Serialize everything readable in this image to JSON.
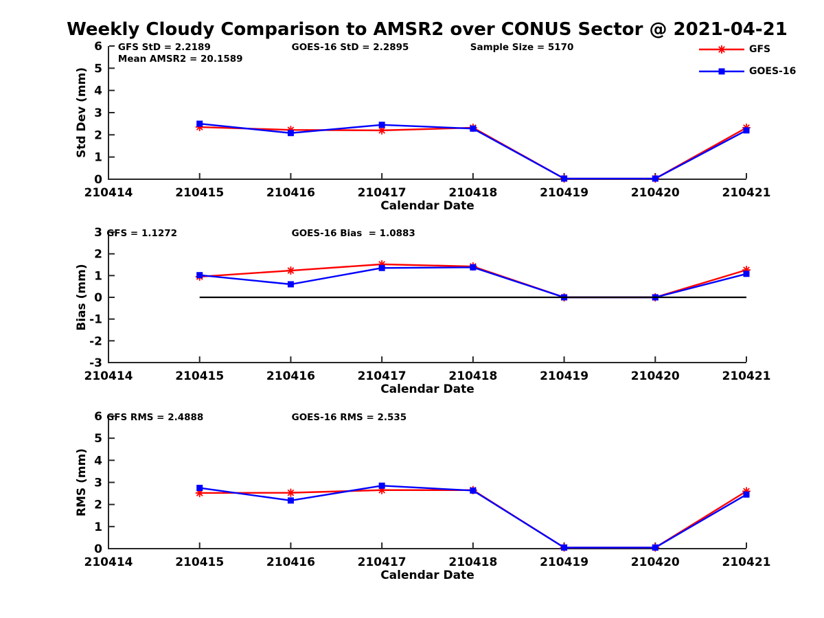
{
  "title": "Weekly Cloudy Comparison to AMSR2 over CONUS Sector @ 2021-04-21",
  "colors": {
    "gfs": "#ff0000",
    "goes16": "#0000ff",
    "axis": "#262626",
    "zero_line": "#000000",
    "text": "#000000"
  },
  "legend": [
    {
      "label": "GFS",
      "color": "#ff0000",
      "marker": "asterisk"
    },
    {
      "label": "GOES-16",
      "color": "#0000ff",
      "marker": "square"
    }
  ],
  "chart_data": [
    {
      "type": "line",
      "name": "std-dev",
      "xlabel": "Calendar Date",
      "ylabel": "Std Dev (mm)",
      "ylim": [
        0,
        6
      ],
      "yticks": [
        0,
        1,
        2,
        3,
        4,
        5,
        6
      ],
      "categories": [
        "210414",
        "210415",
        "210416",
        "210417",
        "210418",
        "210419",
        "210420",
        "210421"
      ],
      "x": [
        "210415",
        "210416",
        "210417",
        "210418",
        "210419",
        "210420",
        "210421"
      ],
      "zero_line": false,
      "annotations": [
        {
          "text": "GFS StD = 2.2189",
          "xf": 0.015,
          "row": 0
        },
        {
          "text": "Mean AMSR2 = 20.1589",
          "xf": 0.015,
          "row": 1
        },
        {
          "text": "GOES-16 StD = 2.2895",
          "xf": 0.287,
          "row": 0
        },
        {
          "text": "Sample Size = 5170",
          "xf": 0.567,
          "row": 0
        }
      ],
      "series": [
        {
          "name": "GFS",
          "color": "#ff0000",
          "marker": "asterisk",
          "values": [
            2.35,
            2.22,
            2.2,
            2.32,
            0.03,
            0.03,
            2.32
          ]
        },
        {
          "name": "GOES-16",
          "color": "#0000ff",
          "marker": "square",
          "values": [
            2.5,
            2.08,
            2.45,
            2.28,
            0.03,
            0.03,
            2.2
          ]
        }
      ]
    },
    {
      "type": "line",
      "name": "bias",
      "xlabel": "Calendar Date",
      "ylabel": "Bias (mm)",
      "ylim": [
        -3,
        3
      ],
      "yticks": [
        -3,
        -2,
        -1,
        0,
        1,
        2,
        3
      ],
      "categories": [
        "210414",
        "210415",
        "210416",
        "210417",
        "210418",
        "210419",
        "210420",
        "210421"
      ],
      "x": [
        "210415",
        "210416",
        "210417",
        "210418",
        "210419",
        "210420",
        "210421"
      ],
      "zero_line": true,
      "annotations": [
        {
          "text": "GFS = 1.1272",
          "xf": -0.003,
          "row": 0
        },
        {
          "text": "GOES-16 Bias  = 1.0883",
          "xf": 0.287,
          "row": 0
        }
      ],
      "series": [
        {
          "name": "GFS",
          "color": "#ff0000",
          "marker": "asterisk",
          "values": [
            0.95,
            1.23,
            1.52,
            1.42,
            0.0,
            0.0,
            1.26
          ]
        },
        {
          "name": "GOES-16",
          "color": "#0000ff",
          "marker": "square",
          "values": [
            1.02,
            0.6,
            1.35,
            1.38,
            0.0,
            0.0,
            1.08
          ]
        }
      ]
    },
    {
      "type": "line",
      "name": "rms",
      "xlabel": "Calendar Date",
      "ylabel": "RMS (mm)",
      "ylim": [
        0,
        6
      ],
      "yticks": [
        0,
        1,
        2,
        3,
        4,
        5,
        6
      ],
      "categories": [
        "210414",
        "210415",
        "210416",
        "210417",
        "210418",
        "210419",
        "210420",
        "210421"
      ],
      "x": [
        "210415",
        "210416",
        "210417",
        "210418",
        "210419",
        "210420",
        "210421"
      ],
      "zero_line": false,
      "annotations": [
        {
          "text": "GFS RMS = 2.4888",
          "xf": -0.003,
          "row": 0
        },
        {
          "text": "GOES-16 RMS = 2.535",
          "xf": 0.287,
          "row": 0
        }
      ],
      "series": [
        {
          "name": "GFS",
          "color": "#ff0000",
          "marker": "asterisk",
          "values": [
            2.52,
            2.53,
            2.65,
            2.65,
            0.05,
            0.05,
            2.6
          ]
        },
        {
          "name": "GOES-16",
          "color": "#0000ff",
          "marker": "square",
          "values": [
            2.75,
            2.18,
            2.85,
            2.63,
            0.05,
            0.05,
            2.45
          ]
        }
      ]
    }
  ]
}
